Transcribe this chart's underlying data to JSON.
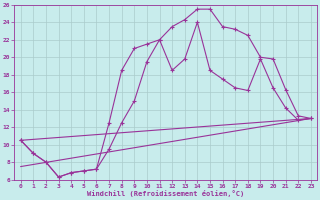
{
  "title": "",
  "xlabel": "Windchill (Refroidissement éolien,°C)",
  "ylabel": "",
  "xlim": [
    -0.5,
    23.5
  ],
  "ylim": [
    6,
    26
  ],
  "yticks": [
    6,
    8,
    10,
    12,
    14,
    16,
    18,
    20,
    22,
    24,
    26
  ],
  "xticks": [
    0,
    1,
    2,
    3,
    4,
    5,
    6,
    7,
    8,
    9,
    10,
    11,
    12,
    13,
    14,
    15,
    16,
    17,
    18,
    19,
    20,
    21,
    22,
    23
  ],
  "bg_color": "#c8ecec",
  "line_color": "#993399",
  "grid_color": "#aacccc",
  "series": [
    {
      "x": [
        0,
        1,
        2,
        3,
        4,
        5,
        6,
        7,
        8,
        9,
        10,
        11,
        12,
        13,
        14,
        15,
        16,
        17,
        18,
        19,
        20,
        21,
        22,
        23
      ],
      "y": [
        10.5,
        9.0,
        8.0,
        6.3,
        6.8,
        7.0,
        7.2,
        12.5,
        18.5,
        21.0,
        21.5,
        22.0,
        23.5,
        24.3,
        25.5,
        25.5,
        23.5,
        23.2,
        22.5,
        20.0,
        19.8,
        16.3,
        13.3,
        13.0
      ],
      "marker": true
    },
    {
      "x": [
        0,
        1,
        2,
        3,
        4,
        5,
        6,
        7,
        8,
        9,
        10,
        11,
        12,
        13,
        14,
        15,
        16,
        17,
        18,
        19,
        20,
        21,
        22,
        23
      ],
      "y": [
        10.5,
        9.0,
        8.0,
        6.3,
        6.8,
        7.0,
        7.2,
        9.5,
        12.5,
        15.0,
        19.5,
        22.0,
        18.5,
        19.8,
        24.0,
        18.5,
        17.5,
        16.5,
        16.2,
        19.8,
        16.5,
        14.2,
        12.8,
        13.0
      ],
      "marker": true
    },
    {
      "x": [
        0,
        23
      ],
      "y": [
        10.5,
        13.0
      ],
      "marker": false
    },
    {
      "x": [
        0,
        23
      ],
      "y": [
        7.5,
        13.0
      ],
      "marker": false
    }
  ]
}
